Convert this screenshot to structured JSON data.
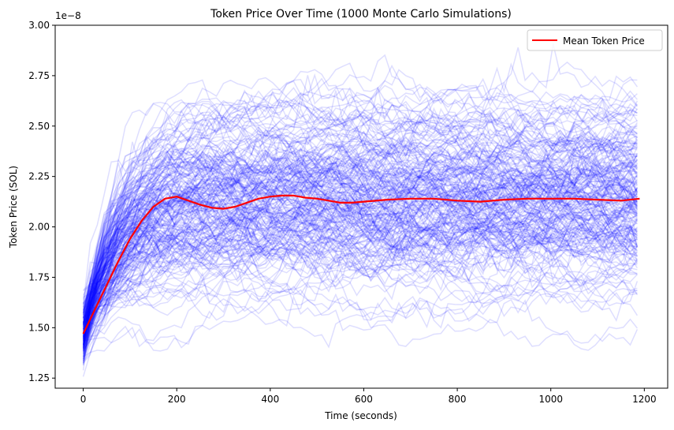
{
  "chart_data": {
    "type": "line",
    "title": "Token Price Over Time (1000 Monte Carlo Simulations)",
    "xlabel": "Time (seconds)",
    "ylabel": "Token Price (SOL)",
    "y_offset_text": "1e−8",
    "y_scale": 1e-08,
    "xlim": [
      -60,
      1250
    ],
    "ylim": [
      1.2,
      3.0
    ],
    "x_ticks": [
      0,
      200,
      400,
      600,
      800,
      1000,
      1200
    ],
    "x_tick_labels": [
      "0",
      "200",
      "400",
      "600",
      "800",
      "1000",
      "1200"
    ],
    "y_ticks": [
      1.25,
      1.5,
      1.75,
      2.0,
      2.25,
      2.5,
      2.75,
      3.0
    ],
    "y_tick_labels": [
      "1.25",
      "1.50",
      "1.75",
      "2.00",
      "2.25",
      "2.50",
      "2.75",
      "3.00"
    ],
    "grid": false,
    "legend_position": "top-right",
    "simulation_count": 1000,
    "simulation_color": "#0000ff",
    "mean_color": "#ff0000",
    "series": [
      {
        "name": "Mean Token Price",
        "x": [
          0,
          25,
          50,
          75,
          100,
          125,
          150,
          175,
          200,
          225,
          250,
          275,
          300,
          325,
          350,
          375,
          400,
          425,
          450,
          475,
          500,
          525,
          550,
          575,
          600,
          650,
          700,
          750,
          800,
          850,
          900,
          950,
          1000,
          1050,
          1100,
          1150,
          1190
        ],
        "values": [
          1.47,
          1.59,
          1.71,
          1.83,
          1.94,
          2.03,
          2.1,
          2.14,
          2.15,
          2.13,
          2.11,
          2.095,
          2.09,
          2.1,
          2.12,
          2.14,
          2.15,
          2.155,
          2.155,
          2.145,
          2.14,
          2.13,
          2.12,
          2.12,
          2.125,
          2.135,
          2.14,
          2.14,
          2.13,
          2.125,
          2.135,
          2.14,
          2.14,
          2.14,
          2.135,
          2.13,
          2.14
        ]
      }
    ]
  }
}
